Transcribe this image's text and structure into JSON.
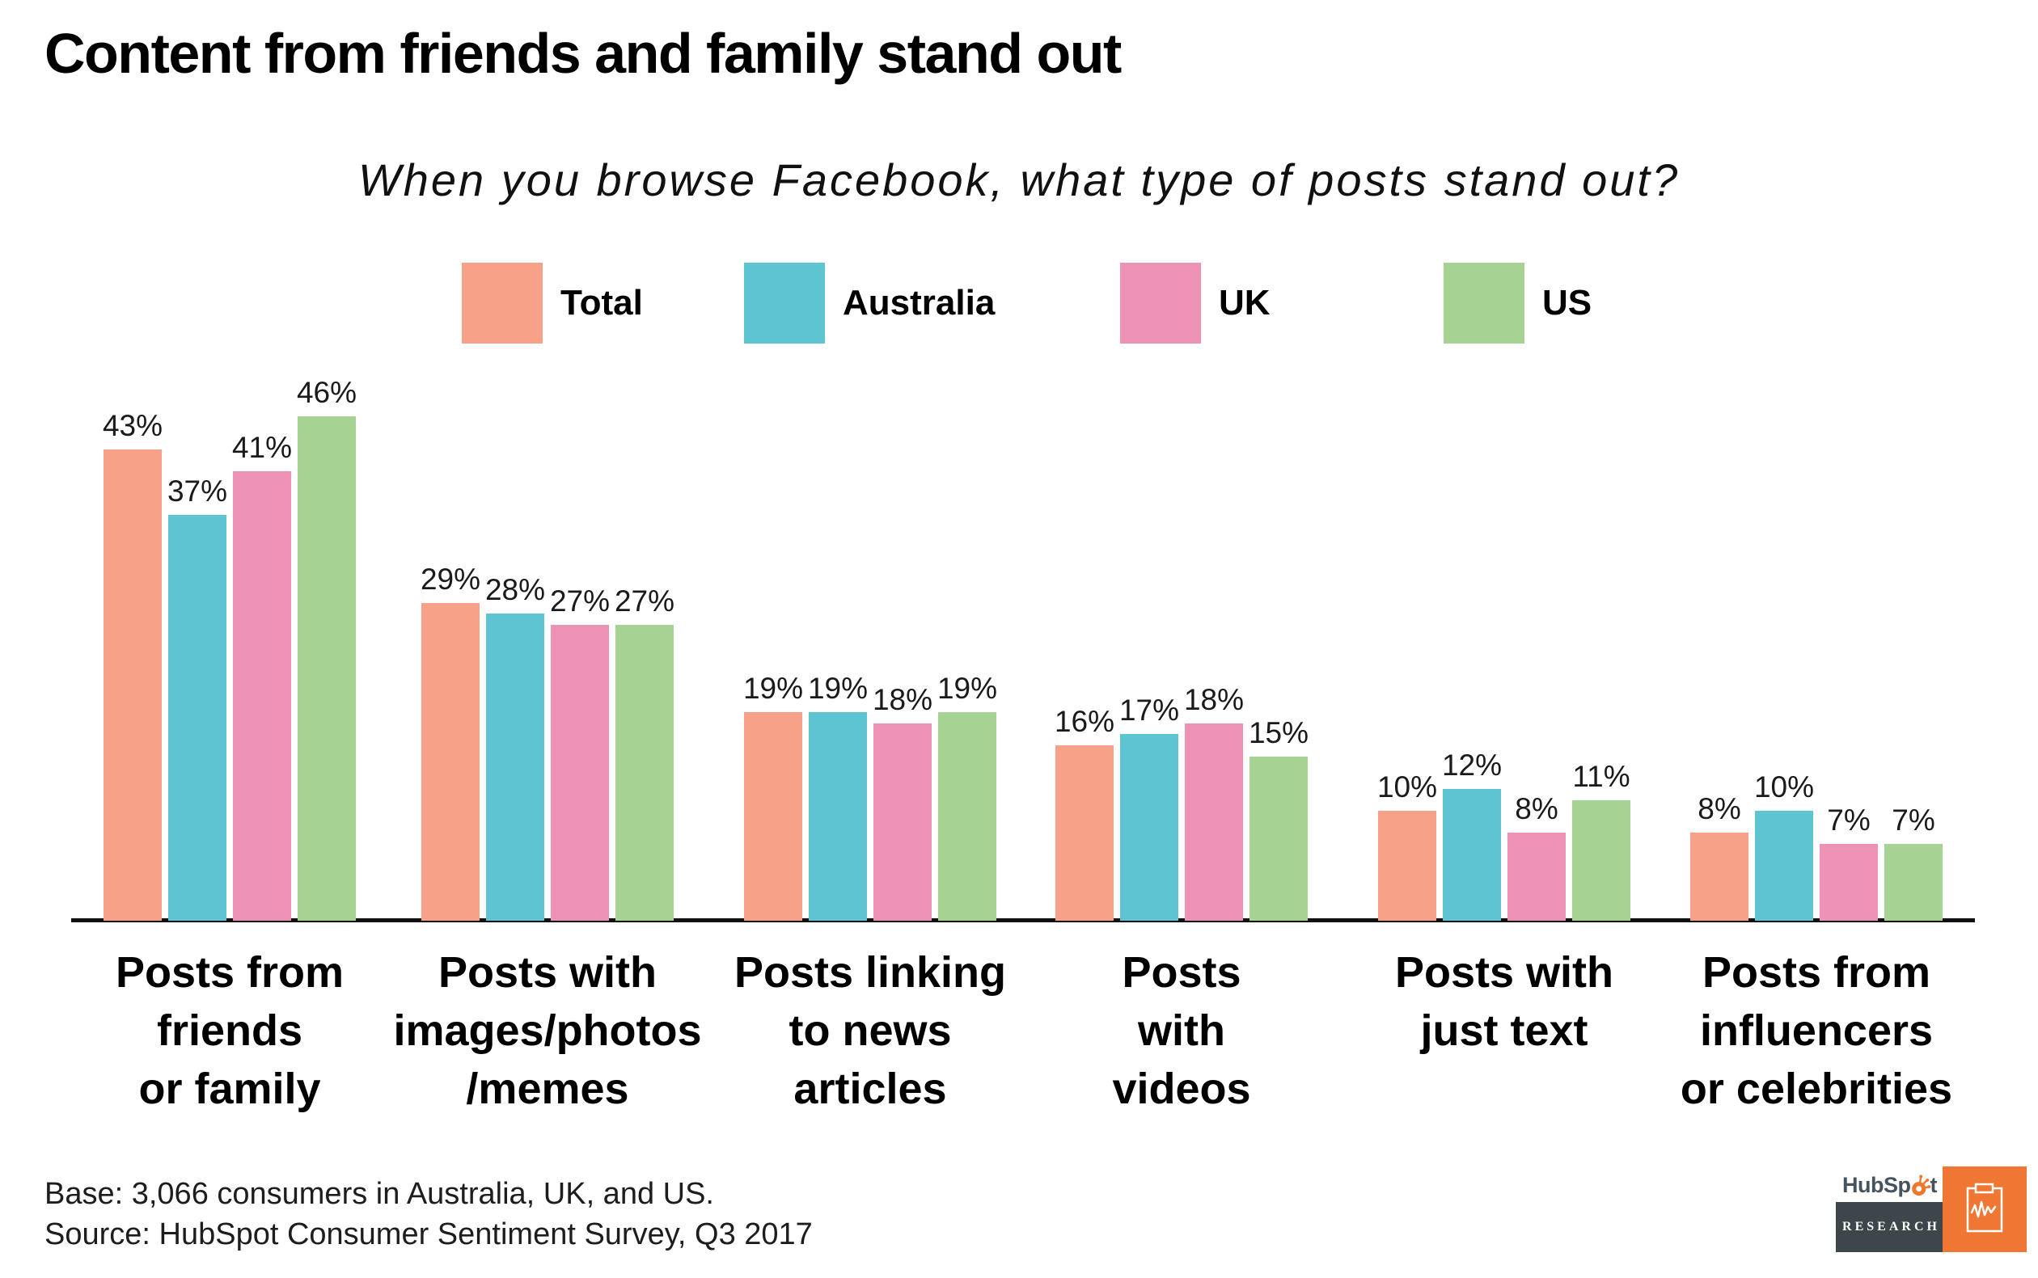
{
  "title": "Content from friends and family stand out",
  "subtitle": "When you browse Facebook, what type of posts stand out?",
  "colors": {
    "total": "#F7A189",
    "australia": "#5CC5D1",
    "uk": "#EE92B5",
    "us": "#A6D294",
    "axis": "#111111",
    "logo_orange": "#EF7733",
    "logo_slate": "#3D464B",
    "logo_wordmark": "#45535E"
  },
  "legend": {
    "items": [
      {
        "label": "Total",
        "color_key": "total"
      },
      {
        "label": "Australia",
        "color_key": "australia"
      },
      {
        "label": "UK",
        "color_key": "uk"
      },
      {
        "label": "US",
        "color_key": "us"
      }
    ]
  },
  "chart_data": {
    "type": "bar",
    "title": "Content from friends and family stand out",
    "subtitle": "When you browse Facebook, what type of posts stand out?",
    "categories": [
      "Posts from\nfriends\nor family",
      "Posts with\nimages/photos\n/memes",
      "Posts linking\nto news\narticles",
      "Posts\nwith\nvideos",
      "Posts with\njust text",
      "Posts from\ninfluencers\nor celebrities"
    ],
    "series": [
      {
        "name": "Total",
        "color": "#F7A189",
        "values": [
          43,
          29,
          19,
          16,
          10,
          8
        ]
      },
      {
        "name": "Australia",
        "color": "#5CC5D1",
        "values": [
          37,
          28,
          19,
          17,
          12,
          10
        ]
      },
      {
        "name": "UK",
        "color": "#EE92B5",
        "values": [
          41,
          27,
          18,
          18,
          8,
          7
        ]
      },
      {
        "name": "US",
        "color": "#A6D294",
        "values": [
          46,
          27,
          19,
          15,
          11,
          7
        ]
      }
    ],
    "value_suffix": "%",
    "ylim": [
      0,
      46
    ],
    "grid": false,
    "legend_position": "top",
    "xlabel": "",
    "ylabel": ""
  },
  "footer": {
    "base": "Base: 3,066 consumers in Australia, UK, and US.",
    "source": "Source: HubSpot Consumer Sentiment Survey, Q3 2017"
  },
  "logo": {
    "wordmark_pre": "HubSp",
    "wordmark_post": "t",
    "research": "RESEARCH"
  }
}
